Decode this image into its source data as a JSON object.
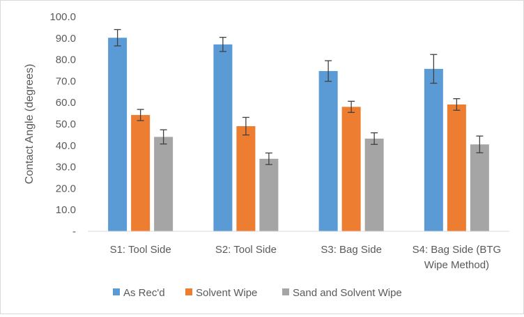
{
  "chart_data": {
    "type": "bar",
    "title": "",
    "xlabel": "",
    "ylabel": "Contact Angle (degrees)",
    "ylim": [
      0,
      100
    ],
    "ytick_step": 10,
    "ytick_labels": [
      "-",
      "10.0",
      "20.0",
      "30.0",
      "40.0",
      "50.0",
      "60.0",
      "70.0",
      "80.0",
      "90.0",
      "100.0"
    ],
    "grid": "none",
    "legend_position": "bottom",
    "categories": [
      [
        "S1: Tool Side"
      ],
      [
        "S2: Tool Side"
      ],
      [
        "S3: Bag Side"
      ],
      [
        "S4: Bag Side (BTG",
        "Wipe Method)"
      ]
    ],
    "series": [
      {
        "name": "As Rec'd",
        "color": "#5b9bd5",
        "values": [
          90.2,
          87.1,
          74.7,
          75.7
        ],
        "errors": [
          3.8,
          3.3,
          4.8,
          6.7
        ]
      },
      {
        "name": "Solvent Wipe",
        "color": "#ed7d31",
        "values": [
          54.2,
          49.0,
          58.0,
          59.1
        ],
        "errors": [
          2.6,
          4.1,
          2.6,
          2.7
        ]
      },
      {
        "name": "Sand and Solvent Wipe",
        "color": "#a5a5a5",
        "values": [
          44.0,
          33.8,
          43.2,
          40.5
        ],
        "errors": [
          3.3,
          2.7,
          2.7,
          3.9
        ]
      }
    ]
  }
}
